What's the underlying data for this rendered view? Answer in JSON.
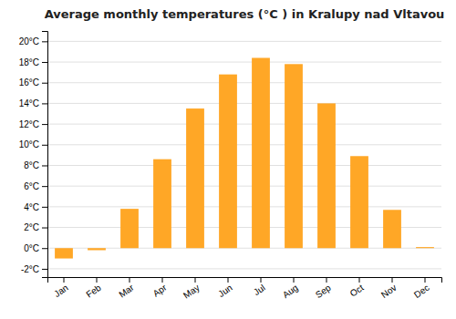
{
  "chart_data": {
    "type": "bar",
    "title": "Average monthly temperatures (°C ) in Kralupy nad Vltavou",
    "categories": [
      "Jan",
      "Feb",
      "Mar",
      "Apr",
      "May",
      "Jun",
      "Jul",
      "Aug",
      "Sep",
      "Oct",
      "Nov",
      "Dec"
    ],
    "values": [
      -1.0,
      -0.2,
      3.8,
      8.6,
      13.5,
      16.8,
      18.4,
      17.8,
      14.0,
      8.9,
      3.7,
      0.1
    ],
    "color": "#FFA726",
    "ylim": [
      -2.8,
      21.0
    ],
    "yticks": [
      {
        "value": -2,
        "label": "-2°C"
      },
      {
        "value": 0,
        "label": "0°C"
      },
      {
        "value": 2,
        "label": "2°C"
      },
      {
        "value": 4,
        "label": "4°C"
      },
      {
        "value": 6,
        "label": "6°C"
      },
      {
        "value": 8,
        "label": "8°C"
      },
      {
        "value": 10,
        "label": "10°C"
      },
      {
        "value": 12,
        "label": "12°C"
      },
      {
        "value": 14,
        "label": "14°C"
      },
      {
        "value": 16,
        "label": "16°C"
      },
      {
        "value": 18,
        "label": "18°C"
      },
      {
        "value": 20,
        "label": "20°C"
      }
    ],
    "grid": true
  }
}
